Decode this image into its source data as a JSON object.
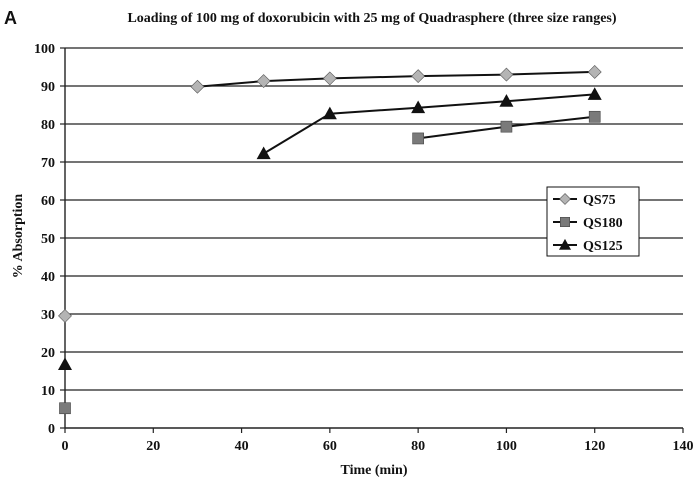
{
  "panel_label": "A",
  "chart_data": {
    "type": "line",
    "title": "Loading of 100 mg of doxorubicin with 25 mg of Quadrasphere (three size ranges)",
    "xlabel": "Time (min)",
    "ylabel": "% Absorption",
    "xlim": [
      0,
      140
    ],
    "ylim": [
      0,
      100
    ],
    "xticks": [
      0,
      20,
      40,
      60,
      80,
      100,
      120,
      140
    ],
    "yticks": [
      0,
      10,
      20,
      30,
      40,
      50,
      60,
      70,
      80,
      90,
      100
    ],
    "grid": "horizontal",
    "legend_position": "right",
    "series": [
      {
        "name": "QS75",
        "marker": "diamond",
        "color": "#b4b4b4",
        "points": [
          {
            "x": 0,
            "y": 29.5,
            "connected": false
          },
          {
            "x": 30,
            "y": 89.8,
            "connected": true
          },
          {
            "x": 45,
            "y": 91.3,
            "connected": true
          },
          {
            "x": 60,
            "y": 92.0,
            "connected": true
          },
          {
            "x": 80,
            "y": 92.6,
            "connected": true
          },
          {
            "x": 100,
            "y": 93.0,
            "connected": true
          },
          {
            "x": 120,
            "y": 93.7,
            "connected": true
          }
        ]
      },
      {
        "name": "QS180",
        "marker": "square",
        "color": "#7a7a7a",
        "points": [
          {
            "x": 0,
            "y": 5.2,
            "connected": false
          },
          {
            "x": 80,
            "y": 76.2,
            "connected": true
          },
          {
            "x": 100,
            "y": 79.3,
            "connected": true
          },
          {
            "x": 120,
            "y": 81.9,
            "connected": true
          }
        ]
      },
      {
        "name": "QS125",
        "marker": "triangle",
        "color": "#111111",
        "points": [
          {
            "x": 0,
            "y": 16.7,
            "connected": false
          },
          {
            "x": 45,
            "y": 72.2,
            "connected": true
          },
          {
            "x": 60,
            "y": 82.7,
            "connected": true
          },
          {
            "x": 80,
            "y": 84.3,
            "connected": true
          },
          {
            "x": 100,
            "y": 86.0,
            "connected": true
          },
          {
            "x": 120,
            "y": 87.8,
            "connected": true
          }
        ]
      }
    ]
  }
}
